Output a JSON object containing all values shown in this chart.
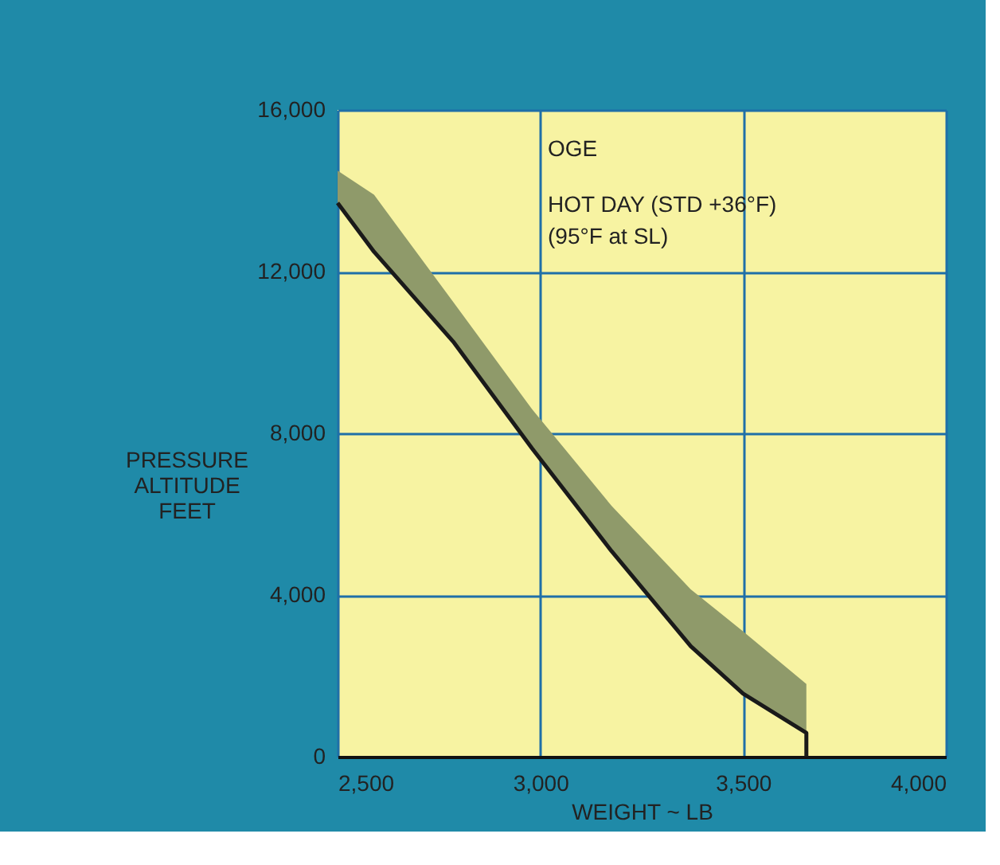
{
  "chart_data": {
    "type": "line",
    "xlabel": "WEIGHT ~ LB",
    "ylabel": "PRESSURE\nALTITUDE\nFEET",
    "annotations": [
      "OGE",
      "HOT DAY (STD +36°F)",
      "(95°F at SL)"
    ],
    "series": [
      {
        "color": "#1a1a1a",
        "x": [
          2500,
          2590,
          2785,
          2980,
          3176,
          3371,
          3500,
          3656,
          3656
        ],
        "values": [
          13700,
          12490,
          10270,
          7620,
          5080,
          2730,
          1560,
          590,
          0
        ],
        "lower": [
          13700,
          12490,
          10270,
          7620,
          5080,
          2730,
          1560,
          590,
          null
        ],
        "upper": [
          14500,
          13900,
          11250,
          8590,
          6200,
          4140,
          3100,
          1800,
          null
        ]
      }
    ],
    "xlim": [
      2500,
      4000
    ],
    "xticks": [
      {
        "value": 2500,
        "label": "2,500"
      },
      {
        "value": 3000,
        "label": "3,000"
      },
      {
        "value": 3500,
        "label": "3,500"
      },
      {
        "value": 4000,
        "label": "4,000"
      }
    ],
    "ylim": [
      0,
      16000
    ],
    "yticks": [
      0,
      {
        "value": 4000,
        "label": "4,000"
      },
      {
        "value": 8000,
        "label": "8,000"
      },
      {
        "value": 12000,
        "label": "12,000"
      },
      {
        "value": 16000,
        "label": "16,000"
      }
    ],
    "grid": true,
    "marker": "none",
    "line_style": "solid"
  }
}
